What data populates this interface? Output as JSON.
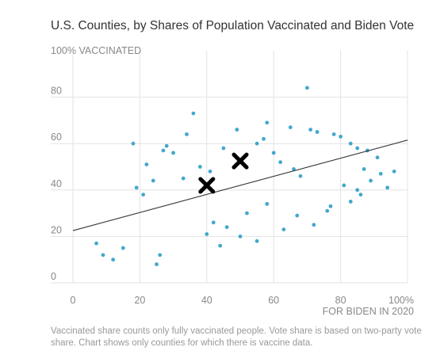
{
  "chart_data": {
    "type": "scatter",
    "title": "U.S. Counties, by Shares of Population Vaccinated and Biden Vote",
    "ylabel": "100% VACCINATED",
    "xlabel": "FOR BIDEN IN 2020",
    "xlim": [
      0,
      100
    ],
    "ylim": [
      0,
      100
    ],
    "x_ticks": [
      "0",
      "20",
      "40",
      "60",
      "80",
      "100%"
    ],
    "y_ticks": [
      "0",
      "20",
      "40",
      "60",
      "80"
    ],
    "grid": true,
    "point_color": "#2e9fc6",
    "trendline": {
      "x": [
        0,
        100
      ],
      "y": [
        22.5,
        61.5
      ],
      "color": "#333333"
    },
    "markers": [
      {
        "label": "X",
        "x": 40,
        "y": 42,
        "color": "#000000"
      },
      {
        "label": "X",
        "x": 50,
        "y": 52.5,
        "color": "#000000"
      }
    ],
    "series": [
      {
        "points": [
          [
            70,
            84
          ],
          [
            36,
            73
          ],
          [
            18,
            60
          ],
          [
            58,
            69
          ],
          [
            65,
            67
          ],
          [
            71,
            66
          ],
          [
            73,
            65
          ],
          [
            78,
            64
          ],
          [
            80,
            63
          ],
          [
            83,
            60
          ],
          [
            85,
            58
          ],
          [
            88,
            57
          ],
          [
            91,
            54
          ],
          [
            87,
            49
          ],
          [
            96,
            48
          ],
          [
            92,
            47
          ],
          [
            81,
            42
          ],
          [
            86,
            38
          ],
          [
            83,
            35
          ],
          [
            77,
            33
          ],
          [
            76,
            31
          ],
          [
            85,
            40
          ],
          [
            89,
            44
          ],
          [
            94,
            41
          ],
          [
            67,
            29
          ],
          [
            72,
            25
          ],
          [
            63,
            23
          ],
          [
            55,
            18
          ],
          [
            50,
            20
          ],
          [
            46,
            24
          ],
          [
            28,
            59
          ],
          [
            22,
            51
          ],
          [
            30,
            56
          ],
          [
            27,
            57
          ],
          [
            34,
            64
          ],
          [
            9,
            12
          ],
          [
            12,
            10
          ],
          [
            15,
            15
          ],
          [
            7,
            17
          ],
          [
            25,
            8
          ],
          [
            26,
            12
          ],
          [
            44,
            16
          ],
          [
            40,
            21
          ],
          [
            42,
            26
          ],
          [
            52,
            30
          ],
          [
            58,
            34
          ],
          [
            60,
            56
          ],
          [
            62,
            52
          ],
          [
            66,
            49
          ],
          [
            68,
            46
          ],
          [
            55,
            60
          ],
          [
            57,
            62
          ],
          [
            49,
            66
          ],
          [
            45,
            58
          ],
          [
            41,
            48
          ],
          [
            38,
            50
          ],
          [
            33,
            45
          ],
          [
            24,
            44
          ],
          [
            21,
            38
          ],
          [
            19,
            41
          ]
        ]
      }
    ]
  },
  "footnote": "Vaccinated share counts only fully vaccinated people. Vote share is based on two-party vote share. Chart shows only counties for which there is vaccine data."
}
